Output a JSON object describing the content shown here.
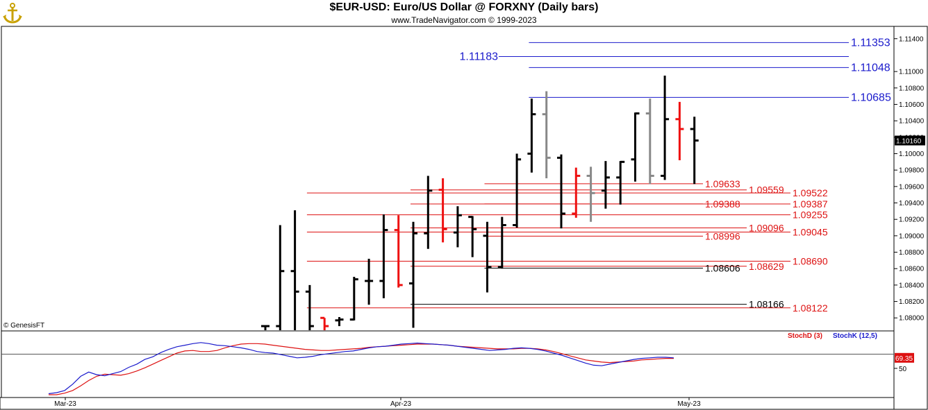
{
  "header": {
    "title": "$EUR-USD:  Euro/US Dollar @ FORXNY  (Daily bars)",
    "subtitle": "www.TradeNavigator.com © 1999-2023",
    "logo": "anchor-logo-icon"
  },
  "copyright": "© GenesisFT",
  "colors": {
    "up": "#000000",
    "down": "#ee1111",
    "grey": "#888888",
    "blue": "#1a1acc",
    "red": "#dd1111"
  },
  "chart_data": {
    "type": "bar",
    "price_axis": {
      "ylim": [
        1.0785,
        1.1155
      ],
      "ticks": [
        1.08,
        1.082,
        1.084,
        1.086,
        1.088,
        1.09,
        1.092,
        1.094,
        1.096,
        1.098,
        1.1,
        1.102,
        1.104,
        1.106,
        1.108,
        1.11,
        1.114
      ],
      "tick_labels": [
        "1.08000",
        "1.08200",
        "1.08400",
        "1.08600",
        "1.08800",
        "1.09000",
        "1.09200",
        "1.09400",
        "1.09600",
        "1.09800",
        "1.10000",
        "1.10200",
        "1.10400",
        "1.10600",
        "1.10800",
        "1.11000",
        "1.11400"
      ],
      "last_price_label": "1.10160",
      "last_price": 1.1016
    },
    "x_labels": [
      {
        "label": "Mar-23",
        "index": -14
      },
      {
        "label": "Apr-23",
        "index": 9
      },
      {
        "label": "May-23",
        "index": 28
      }
    ],
    "bars": [
      {
        "i": 0,
        "o": 1.079,
        "h": 1.079,
        "l": 1.0785,
        "c": 1.079,
        "color": "up"
      },
      {
        "i": 1,
        "o": 1.079,
        "h": 1.0913,
        "l": 1.0785,
        "c": 1.0857,
        "color": "up"
      },
      {
        "i": 2,
        "o": 1.0857,
        "h": 1.0931,
        "l": 1.0785,
        "c": 1.0832,
        "color": "up"
      },
      {
        "i": 3,
        "o": 1.0832,
        "h": 1.084,
        "l": 1.0785,
        "c": 1.079,
        "color": "up"
      },
      {
        "i": 4,
        "o": 1.08,
        "h": 1.08,
        "l": 1.0785,
        "c": 1.079,
        "color": "down"
      },
      {
        "i": 5,
        "o": 1.0797,
        "h": 1.0801,
        "l": 1.079,
        "c": 1.0798,
        "color": "up"
      },
      {
        "i": 6,
        "o": 1.0798,
        "h": 1.085,
        "l": 1.0797,
        "c": 1.0847,
        "color": "up"
      },
      {
        "i": 7,
        "o": 1.0845,
        "h": 1.0872,
        "l": 1.0816,
        "c": 1.0845,
        "color": "up"
      },
      {
        "i": 8,
        "o": 1.0845,
        "h": 1.0926,
        "l": 1.0824,
        "c": 1.0907,
        "color": "up"
      },
      {
        "i": 9,
        "o": 1.0907,
        "h": 1.0925,
        "l": 1.0837,
        "c": 1.084,
        "color": "down"
      },
      {
        "i": 10,
        "o": 1.0842,
        "h": 1.0917,
        "l": 1.0788,
        "c": 1.0903,
        "color": "up"
      },
      {
        "i": 11,
        "o": 1.0903,
        "h": 1.0973,
        "l": 1.0884,
        "c": 1.0955,
        "color": "up"
      },
      {
        "i": 12,
        "o": 1.0956,
        "h": 1.097,
        "l": 1.0892,
        "c": 1.0908,
        "color": "down"
      },
      {
        "i": 13,
        "o": 1.0904,
        "h": 1.0936,
        "l": 1.0886,
        "c": 1.0925,
        "color": "up"
      },
      {
        "i": 14,
        "o": 1.0923,
        "h": 1.0924,
        "l": 1.0874,
        "c": 1.0908,
        "color": "up"
      },
      {
        "i": 15,
        "o": 1.09,
        "h": 1.0917,
        "l": 1.0831,
        "c": 1.0862,
        "color": "up"
      },
      {
        "i": 16,
        "o": 1.0862,
        "h": 1.0923,
        "l": 1.086,
        "c": 1.0913,
        "color": "up"
      },
      {
        "i": 17,
        "o": 1.0913,
        "h": 1.1,
        "l": 1.091,
        "c": 1.0993,
        "color": "up"
      },
      {
        "i": 18,
        "o": 1.1,
        "h": 1.1067,
        "l": 1.0977,
        "c": 1.1048,
        "color": "up"
      },
      {
        "i": 19,
        "o": 1.1048,
        "h": 1.1076,
        "l": 1.097,
        "c": 1.0995,
        "color": "grey"
      },
      {
        "i": 20,
        "o": 1.0995,
        "h": 1.0999,
        "l": 1.0909,
        "c": 1.0927,
        "color": "up"
      },
      {
        "i": 21,
        "o": 1.0927,
        "h": 1.0983,
        "l": 1.0922,
        "c": 1.0973,
        "color": "down"
      },
      {
        "i": 22,
        "o": 1.0973,
        "h": 1.0984,
        "l": 1.0917,
        "c": 1.0952,
        "color": "grey"
      },
      {
        "i": 23,
        "o": 1.0955,
        "h": 1.0991,
        "l": 1.0933,
        "c": 1.0971,
        "color": "up"
      },
      {
        "i": 24,
        "o": 1.0971,
        "h": 1.0991,
        "l": 1.0938,
        "c": 1.099,
        "color": "up"
      },
      {
        "i": 25,
        "o": 1.0993,
        "h": 1.105,
        "l": 1.0966,
        "c": 1.1049,
        "color": "up"
      },
      {
        "i": 26,
        "o": 1.1049,
        "h": 1.1067,
        "l": 1.0963,
        "c": 1.0973,
        "color": "grey"
      },
      {
        "i": 27,
        "o": 1.0973,
        "h": 1.1095,
        "l": 1.0968,
        "c": 1.1042,
        "color": "up"
      },
      {
        "i": 28,
        "o": 1.1042,
        "h": 1.1063,
        "l": 1.0992,
        "c": 1.103,
        "color": "down"
      },
      {
        "i": 29,
        "o": 1.103,
        "h": 1.1045,
        "l": 1.0963,
        "c": 1.1016,
        "color": "up"
      }
    ],
    "levels": [
      {
        "value": 1.11353,
        "label": "1.11353",
        "color": "blue",
        "from": 18,
        "label_side": "right"
      },
      {
        "value": 1.11183,
        "label": "1.11183",
        "color": "blue",
        "from": 18,
        "label_side": "left"
      },
      {
        "value": 1.11048,
        "label": "1.11048",
        "color": "blue",
        "from": 18,
        "label_side": "right"
      },
      {
        "value": 1.10685,
        "label": "1.10685",
        "color": "blue",
        "from": 18,
        "label_side": "right"
      },
      {
        "value": 1.09633,
        "label": "1.09633",
        "color": "red",
        "from": 15,
        "label_side": "mid"
      },
      {
        "value": 1.09559,
        "label": "1.09559",
        "color": "red",
        "from": 10,
        "label_side": "mid"
      },
      {
        "value": 1.09522,
        "label": "1.09522",
        "color": "red",
        "from": 3,
        "label_side": "right"
      },
      {
        "value": 1.09388,
        "label": "1.09388",
        "color": "red",
        "from": 15,
        "label_side": "mid"
      },
      {
        "value": 1.09387,
        "label": "1.09387",
        "color": "red",
        "from": 10,
        "label_side": "right"
      },
      {
        "value": 1.09255,
        "label": "1.09255",
        "color": "red",
        "from": 3,
        "label_side": "right"
      },
      {
        "value": 1.09096,
        "label": "1.09096",
        "color": "red",
        "from": 10,
        "label_side": "mid"
      },
      {
        "value": 1.09045,
        "label": "1.09045",
        "color": "red",
        "from": 3,
        "label_side": "right"
      },
      {
        "value": 1.08996,
        "label": "1.08996",
        "color": "red",
        "from": 15,
        "label_side": "mid"
      },
      {
        "value": 1.0869,
        "label": "1.08690",
        "color": "red",
        "from": 3,
        "label_side": "right"
      },
      {
        "value": 1.08629,
        "label": "1.08629",
        "color": "red",
        "from": 10,
        "label_side": "mid"
      },
      {
        "value": 1.08606,
        "label": "1.08606",
        "color": "black",
        "from": 15,
        "label_side": "mid"
      },
      {
        "value": 1.08166,
        "label": "1.08166",
        "color": "black",
        "from": 10,
        "label_side": "mid"
      },
      {
        "value": 1.08122,
        "label": "1.08122",
        "color": "red",
        "from": 3,
        "label_side": "right"
      }
    ],
    "stochastic": {
      "legend_d": "StochD (3)",
      "legend_k": "StochK (12,5)",
      "last_value_label": "69.35",
      "tick_labels": [
        {
          "label": "50",
          "value": 50
        }
      ],
      "ylim": [
        0,
        100
      ],
      "k_values": [
        2,
        4,
        8,
        20,
        35,
        43,
        38,
        36,
        40,
        44,
        52,
        58,
        67,
        72,
        80,
        86,
        91,
        94,
        97,
        99,
        97,
        94,
        93,
        91,
        89,
        86,
        82,
        80,
        79,
        76,
        73,
        70,
        71,
        73,
        76,
        78,
        80,
        82,
        83,
        86,
        89,
        91,
        92,
        94,
        96,
        97,
        98,
        97,
        96,
        95,
        94,
        92,
        90,
        88,
        86,
        84,
        85,
        86,
        88,
        89,
        88,
        86,
        83,
        79,
        75,
        70,
        65,
        60,
        56,
        55,
        58,
        61,
        64,
        67,
        69,
        70,
        71,
        71,
        70
      ],
      "d_values": [
        0,
        0,
        3,
        8,
        17,
        27,
        35,
        39,
        38,
        37,
        40,
        45,
        51,
        58,
        65,
        72,
        79,
        83,
        84,
        82,
        82,
        84,
        89,
        93,
        96,
        97,
        97,
        96,
        94,
        92,
        90,
        88,
        86,
        85,
        84,
        84,
        85,
        86,
        87,
        88,
        90,
        91,
        92,
        93,
        94,
        95,
        96,
        96,
        96,
        95,
        94,
        92,
        91,
        90,
        89,
        88,
        87,
        87,
        87,
        88,
        88,
        87,
        85,
        82,
        78,
        74,
        70,
        66,
        64,
        62,
        61,
        62,
        63,
        64,
        66,
        67,
        68,
        69,
        69
      ]
    }
  }
}
